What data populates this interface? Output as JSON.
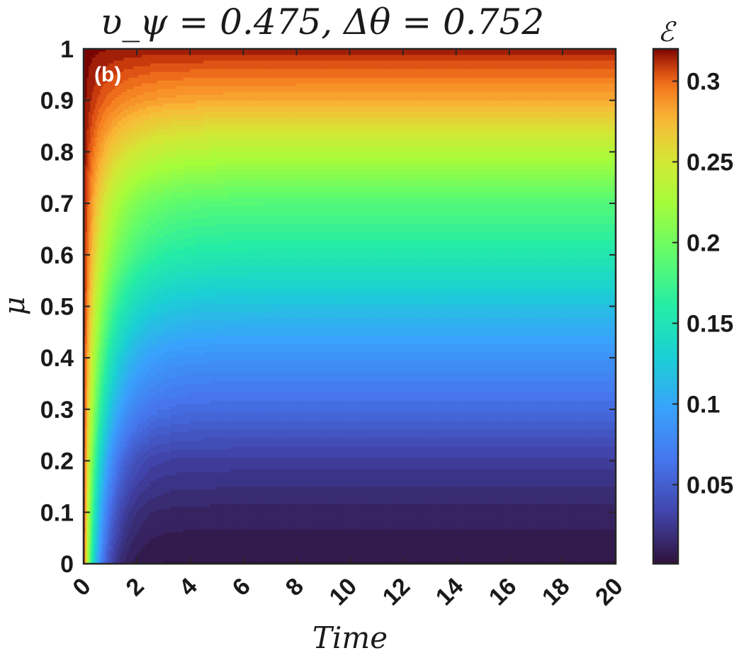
{
  "chart_data": {
    "type": "heatmap",
    "title": "υ_ψ = 0.475, Δθ = 0.752",
    "panel_label": "(b)",
    "xlabel": "Time",
    "ylabel": "μ",
    "colorbar_label": "ℰ",
    "xlim": [
      0,
      20
    ],
    "ylim": [
      0,
      1
    ],
    "x_ticks": [
      "0",
      "2",
      "4",
      "6",
      "8",
      "10",
      "12",
      "14",
      "16",
      "18",
      "20"
    ],
    "y_ticks": [
      "0",
      "0.1",
      "0.2",
      "0.3",
      "0.4",
      "0.5",
      "0.6",
      "0.7",
      "0.8",
      "0.9",
      "1"
    ],
    "colorbar_ticks": [
      "0.05",
      "0.1",
      "0.15",
      "0.2",
      "0.25",
      "0.3"
    ],
    "colorbar_range": [
      0.001,
      0.32
    ],
    "colormap": "turbo",
    "steady_state_profile": {
      "mu": [
        0.0,
        0.1,
        0.2,
        0.3,
        0.4,
        0.5,
        0.6,
        0.7,
        0.8,
        0.9,
        1.0
      ],
      "energy": [
        0.003,
        0.012,
        0.028,
        0.058,
        0.085,
        0.118,
        0.155,
        0.185,
        0.232,
        0.28,
        0.315
      ]
    },
    "initial_energy": 0.32,
    "relaxation_time": 1.0
  }
}
